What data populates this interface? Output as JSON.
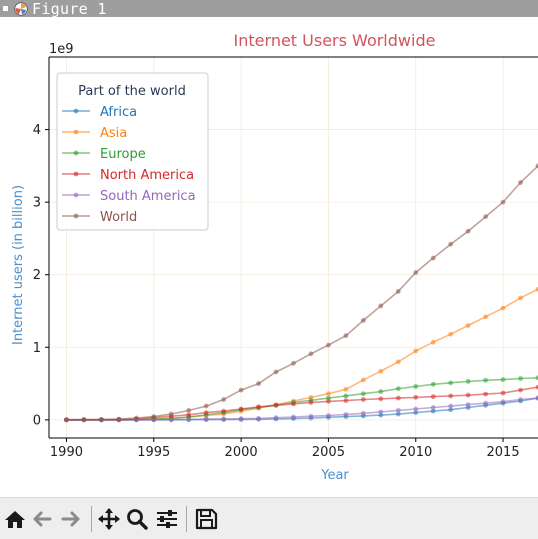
{
  "window": {
    "title": "Figure 1"
  },
  "toolbar": {
    "buttons": [
      {
        "name": "home-icon"
      },
      {
        "name": "back-arrow-icon"
      },
      {
        "name": "forward-arrow-icon"
      },
      {
        "name": "pan-move-icon"
      },
      {
        "name": "zoom-magnifier-icon"
      },
      {
        "name": "configure-subplots-icon"
      },
      {
        "name": "save-floppy-icon"
      }
    ]
  },
  "chart_data": {
    "type": "line",
    "title": "Internet Users Worldwide",
    "xlabel": "Year",
    "ylabel": "Internet users (in billion)",
    "y_offset_label": "1e9",
    "legend_title": "Part of the world",
    "legend_position": "top-left",
    "grid": true,
    "xlim": [
      1989,
      2017
    ],
    "ylim": [
      -0.25,
      5.0
    ],
    "xticks": [
      1990,
      1995,
      2000,
      2005,
      2010,
      2015
    ],
    "yticks": [
      0,
      1,
      2,
      3,
      4
    ],
    "x": [
      1990,
      1991,
      1992,
      1993,
      1994,
      1995,
      1996,
      1997,
      1998,
      1999,
      2000,
      2001,
      2002,
      2003,
      2004,
      2005,
      2006,
      2007,
      2008,
      2009,
      2010,
      2011,
      2012,
      2013,
      2014,
      2015,
      2016,
      2017
    ],
    "colors": {
      "title": "#d1545c",
      "axis_label": "#4a8fce",
      "tick": "#222222",
      "grid": "#f3ead9",
      "legend_title": "#2a3a55"
    },
    "series": [
      {
        "name": "Africa",
        "color": "#1f77b4",
        "values": [
          0,
          0,
          0,
          0,
          0,
          0.001,
          0.001,
          0.002,
          0.003,
          0.003,
          0.005,
          0.008,
          0.012,
          0.018,
          0.025,
          0.035,
          0.045,
          0.055,
          0.065,
          0.08,
          0.1,
          0.12,
          0.14,
          0.17,
          0.2,
          0.23,
          0.26,
          0.3
        ]
      },
      {
        "name": "Asia",
        "color": "#ff7f0e",
        "values": [
          0,
          0,
          0,
          0,
          0.005,
          0.01,
          0.02,
          0.04,
          0.06,
          0.08,
          0.12,
          0.16,
          0.21,
          0.26,
          0.31,
          0.36,
          0.42,
          0.55,
          0.67,
          0.8,
          0.95,
          1.07,
          1.18,
          1.3,
          1.42,
          1.54,
          1.68,
          1.8
        ]
      },
      {
        "name": "Europe",
        "color": "#2ca02c",
        "values": [
          0,
          0,
          0,
          0,
          0.005,
          0.01,
          0.02,
          0.04,
          0.07,
          0.1,
          0.14,
          0.17,
          0.2,
          0.24,
          0.27,
          0.3,
          0.33,
          0.36,
          0.39,
          0.43,
          0.46,
          0.49,
          0.51,
          0.53,
          0.545,
          0.555,
          0.57,
          0.58
        ]
      },
      {
        "name": "North America",
        "color": "#d62728",
        "values": [
          0,
          0,
          0,
          0.005,
          0.01,
          0.03,
          0.05,
          0.07,
          0.1,
          0.12,
          0.15,
          0.18,
          0.2,
          0.22,
          0.24,
          0.255,
          0.265,
          0.28,
          0.29,
          0.3,
          0.31,
          0.32,
          0.33,
          0.34,
          0.355,
          0.37,
          0.41,
          0.45
        ]
      },
      {
        "name": "South America",
        "color": "#9467bd",
        "values": [
          0,
          0,
          0,
          0,
          0,
          0.001,
          0.002,
          0.005,
          0.01,
          0.013,
          0.016,
          0.02,
          0.03,
          0.04,
          0.05,
          0.06,
          0.075,
          0.09,
          0.11,
          0.13,
          0.15,
          0.17,
          0.19,
          0.21,
          0.23,
          0.25,
          0.28,
          0.3
        ]
      },
      {
        "name": "World",
        "color": "#8c564b",
        "values": [
          0.003,
          0.004,
          0.007,
          0.01,
          0.025,
          0.045,
          0.08,
          0.13,
          0.19,
          0.28,
          0.41,
          0.5,
          0.66,
          0.78,
          0.91,
          1.03,
          1.16,
          1.37,
          1.57,
          1.77,
          2.03,
          2.23,
          2.42,
          2.6,
          2.8,
          3.0,
          3.27,
          3.5
        ]
      }
    ]
  }
}
